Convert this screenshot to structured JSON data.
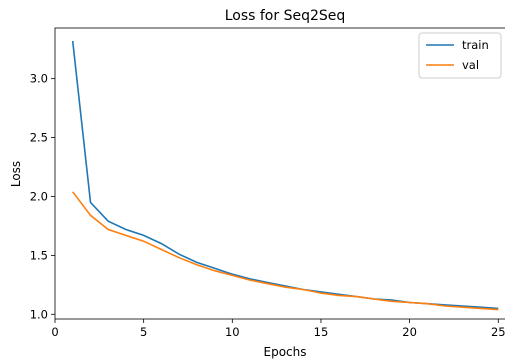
{
  "chart_data": {
    "type": "line",
    "title": "Loss for Seq2Seq",
    "xlabel": "Epochs",
    "ylabel": "Loss",
    "xlim": [
      0,
      26
    ],
    "ylim": [
      0.96,
      3.43
    ],
    "x_ticks": [
      0,
      5,
      10,
      15,
      20,
      25
    ],
    "y_ticks": [
      1.0,
      1.5,
      2.0,
      2.5,
      3.0
    ],
    "y_tick_labels": [
      "1.0",
      "1.5",
      "2.0",
      "2.5",
      "3.0"
    ],
    "grid": false,
    "legend_position": "top-right",
    "x": [
      1,
      2,
      3,
      4,
      5,
      6,
      7,
      8,
      9,
      10,
      11,
      12,
      13,
      14,
      15,
      16,
      17,
      18,
      19,
      20,
      21,
      22,
      23,
      24,
      25
    ],
    "series": [
      {
        "name": "train",
        "color": "#1f77b4",
        "values": [
          3.32,
          1.95,
          1.79,
          1.72,
          1.67,
          1.6,
          1.51,
          1.44,
          1.39,
          1.34,
          1.3,
          1.27,
          1.24,
          1.21,
          1.19,
          1.17,
          1.15,
          1.13,
          1.12,
          1.1,
          1.09,
          1.08,
          1.07,
          1.06,
          1.05
        ]
      },
      {
        "name": "val",
        "color": "#ff7f0e",
        "values": [
          2.04,
          1.84,
          1.72,
          1.67,
          1.62,
          1.55,
          1.48,
          1.42,
          1.37,
          1.33,
          1.29,
          1.26,
          1.23,
          1.21,
          1.18,
          1.16,
          1.15,
          1.13,
          1.11,
          1.1,
          1.09,
          1.07,
          1.06,
          1.05,
          1.04
        ]
      }
    ]
  }
}
